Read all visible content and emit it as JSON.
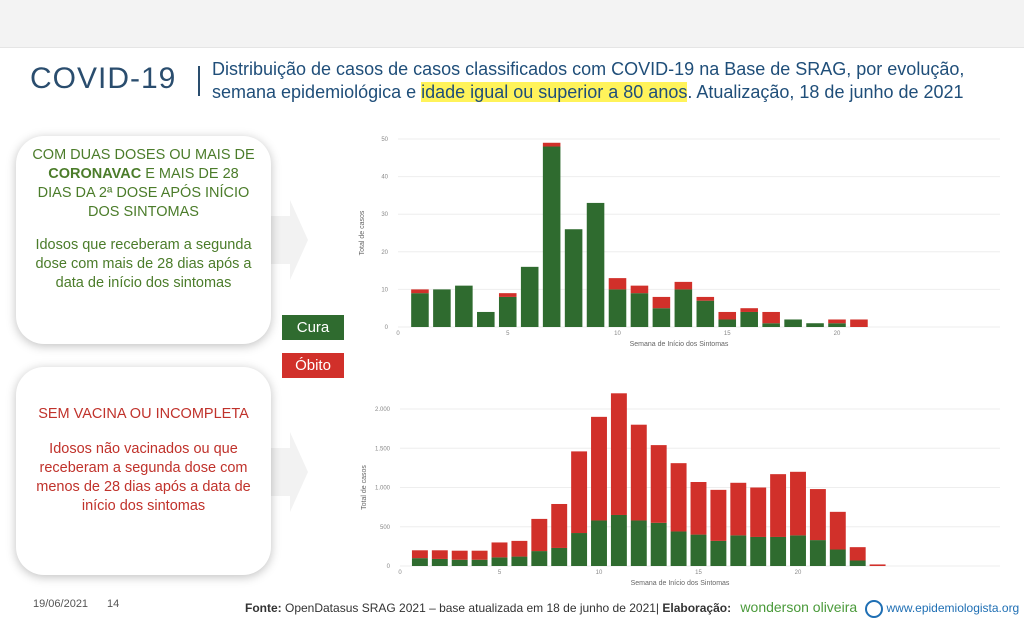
{
  "header": {
    "logo": "COVID-19",
    "title_part1": "Distribuição de casos de casos classificados com COVID-19 na Base de SRAG, por evolução, semana epidemiológica e ",
    "title_highlight": "idade igual ou superior a 80 anos",
    "title_part2": ". Atualização, 18 de junho de 2021"
  },
  "box1": {
    "line1": "COM DUAS DOSES OU MAIS DE ",
    "bold": "CORONAVAC",
    "line2": " E MAIS DE 28 DIAS DA 2ª DOSE APÓS INÍCIO DOS SINTOMAS",
    "desc": "Idosos que receberam a segunda dose com mais de 28 dias após a data de início dos sintomas"
  },
  "box2": {
    "heading": "SEM VACINA OU INCOMPLETA",
    "desc": "Idosos não vacinados ou que receberam a segunda dose com menos de 28 dias após a data de início dos sintomas"
  },
  "legend": {
    "cura": "Cura",
    "obito": "Óbito"
  },
  "colors": {
    "cura": "#2f6b2f",
    "obito": "#d1302a"
  },
  "chart_data": [
    {
      "type": "bar",
      "stacked": true,
      "title": "",
      "xlabel": "Semana de Início dos Sintomas",
      "ylabel": "Total de casos",
      "ylim": [
        0,
        50
      ],
      "xlim": [
        0,
        22
      ],
      "yticks": [
        {
          "v": 0,
          "l": "0"
        },
        {
          "v": 10,
          "l": "10"
        },
        {
          "v": 20,
          "l": "20"
        },
        {
          "v": 30,
          "l": "30"
        },
        {
          "v": 40,
          "l": "40"
        },
        {
          "v": 50,
          "l": "50"
        }
      ],
      "xticks": [
        {
          "v": 0,
          "l": "0"
        },
        {
          "v": 5,
          "l": "5"
        },
        {
          "v": 10,
          "l": "10"
        },
        {
          "v": 15,
          "l": "15"
        },
        {
          "v": 20,
          "l": "20"
        }
      ],
      "x": [
        1,
        2,
        3,
        4,
        5,
        6,
        7,
        8,
        9,
        10,
        11,
        12,
        13,
        14,
        15,
        16,
        17,
        18,
        19,
        20,
        21
      ],
      "series": [
        {
          "name": "Cura",
          "values": [
            9,
            10,
            11,
            4,
            8,
            16,
            48,
            26,
            33,
            10,
            9,
            5,
            10,
            7,
            2,
            4,
            1,
            2,
            1,
            1,
            0
          ]
        },
        {
          "name": "Óbito",
          "values": [
            1,
            0,
            0,
            0,
            1,
            0,
            1,
            0,
            0,
            3,
            2,
            3,
            2,
            1,
            2,
            1,
            3,
            0,
            0,
            1,
            2
          ]
        }
      ]
    },
    {
      "type": "bar",
      "stacked": true,
      "title": "",
      "xlabel": "Semana de Início dos Sintomas",
      "ylabel": "Total de casos",
      "ylim": [
        0,
        2200
      ],
      "xlim": [
        0,
        24.5
      ],
      "yticks": [
        {
          "v": 0,
          "l": "0"
        },
        {
          "v": 500,
          "l": "500"
        },
        {
          "v": 1000,
          "l": "1.000"
        },
        {
          "v": 1500,
          "l": "1.500"
        },
        {
          "v": 2000,
          "l": "2.000"
        }
      ],
      "xticks": [
        {
          "v": 0,
          "l": "0"
        },
        {
          "v": 5,
          "l": "5"
        },
        {
          "v": 10,
          "l": "10"
        },
        {
          "v": 15,
          "l": "15"
        },
        {
          "v": 20,
          "l": "20"
        }
      ],
      "x": [
        1,
        2,
        3,
        4,
        5,
        6,
        7,
        8,
        9,
        10,
        11,
        12,
        13,
        14,
        15,
        16,
        17,
        18,
        19,
        20,
        21,
        22,
        23,
        24
      ],
      "series": [
        {
          "name": "Cura",
          "values": [
            100,
            90,
            80,
            80,
            110,
            120,
            190,
            230,
            420,
            580,
            650,
            580,
            550,
            440,
            400,
            320,
            390,
            370,
            370,
            390,
            330,
            210,
            70,
            0
          ]
        },
        {
          "name": "Óbito",
          "values": [
            100,
            110,
            115,
            115,
            190,
            200,
            410,
            560,
            1040,
            1320,
            1550,
            1220,
            990,
            870,
            670,
            650,
            670,
            630,
            800,
            810,
            650,
            480,
            170,
            20
          ]
        }
      ]
    }
  ],
  "footer": {
    "date": "19/06/2021",
    "page": "14",
    "fonte_label": "Fonte:",
    "fonte": " OpenDatasus SRAG 2021 – base atualizada em 18 de junho de 2021| ",
    "elab_label": "Elaboração:",
    "author": "wonderson oliveira",
    "site": "www.epidemiologista.org"
  }
}
